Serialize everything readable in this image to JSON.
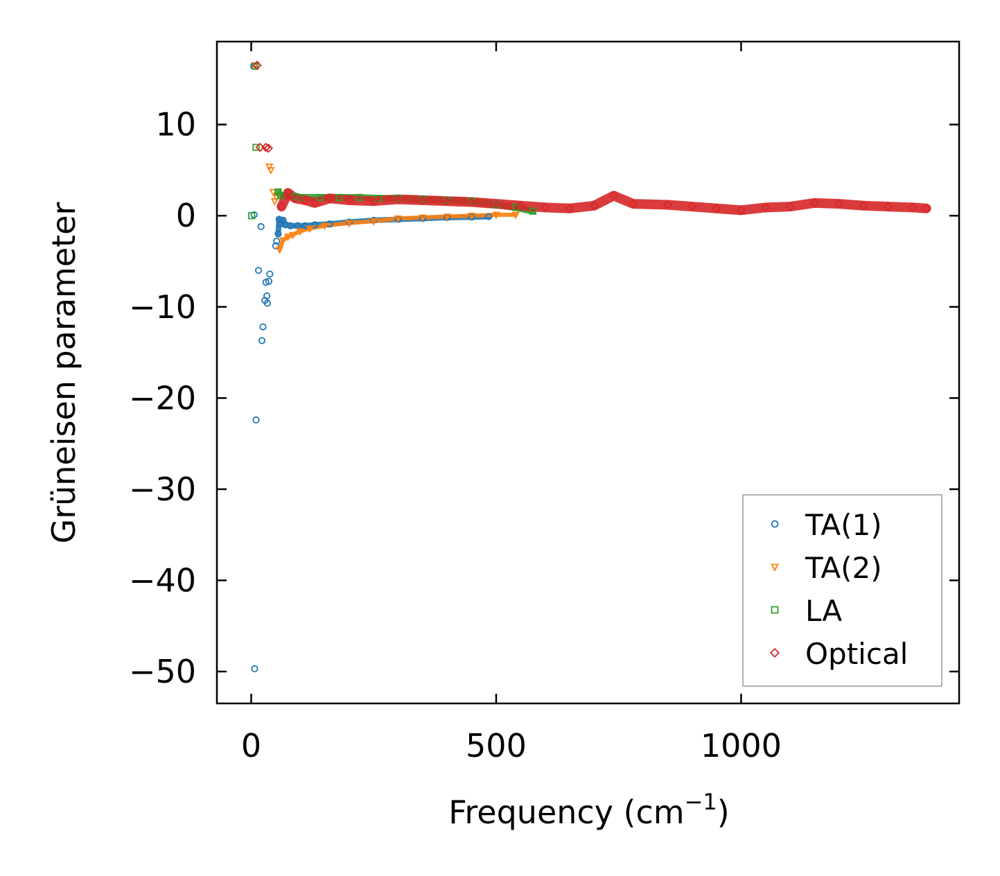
{
  "chart_data": {
    "type": "scatter",
    "title": "",
    "xlabel": "Frequency (cm",
    "xlabel_sup": "−1",
    "xlabel_close": ")",
    "ylabel": "Grüneisen parameter",
    "xlim": [
      -70,
      1445
    ],
    "ylim": [
      -53.5,
      19.1
    ],
    "xticks": [
      0,
      500,
      1000
    ],
    "xtick_labels": [
      "0",
      "500",
      "1000"
    ],
    "yticks": [
      10,
      0,
      -10,
      -20,
      -30,
      -40,
      -50
    ],
    "ytick_labels": [
      "10",
      "0",
      "−10",
      "−20",
      "−30",
      "−40",
      "−50"
    ],
    "legend_position": "lower-right",
    "series": [
      {
        "name": "TA(1)",
        "marker": "circle",
        "color": "#1f77b4",
        "points": [
          [
            5,
            16.4
          ],
          [
            6,
            0.1
          ],
          [
            7,
            -49.7
          ],
          [
            10,
            -22.4
          ],
          [
            15,
            -6
          ],
          [
            20,
            -1.2
          ],
          [
            22,
            -13.7
          ],
          [
            24,
            -12.2
          ],
          [
            28,
            -9.3
          ],
          [
            30,
            -7.3
          ],
          [
            32,
            -8.8
          ],
          [
            33,
            -9.6
          ],
          [
            36,
            -7.2
          ],
          [
            38,
            -6.4
          ],
          [
            50,
            -3.3
          ],
          [
            52,
            -2.8
          ],
          [
            55,
            -2
          ],
          [
            57,
            -0.4
          ],
          [
            60,
            -0.9
          ],
          [
            65,
            -0.5
          ],
          [
            70,
            -1
          ],
          [
            80,
            -1.1
          ],
          [
            95,
            -1.1
          ],
          [
            110,
            -1.1
          ],
          [
            130,
            -1
          ],
          [
            160,
            -0.9
          ],
          [
            200,
            -0.7
          ],
          [
            250,
            -0.5
          ],
          [
            300,
            -0.4
          ],
          [
            350,
            -0.3
          ],
          [
            400,
            -0.2
          ],
          [
            450,
            -0.15
          ],
          [
            485,
            -0.1
          ]
        ]
      },
      {
        "name": "TA(2)",
        "marker": "triangle-down",
        "color": "#ff7f0e",
        "points": [
          [
            7,
            16.5
          ],
          [
            37,
            5.4
          ],
          [
            40,
            5
          ],
          [
            45,
            2.6
          ],
          [
            48,
            1.6
          ],
          [
            52,
            2
          ],
          [
            58,
            -3.7
          ],
          [
            65,
            -2.7
          ],
          [
            75,
            -2.3
          ],
          [
            85,
            -2.1
          ],
          [
            100,
            -1.7
          ],
          [
            120,
            -1.4
          ],
          [
            150,
            -1.1
          ],
          [
            200,
            -0.8
          ],
          [
            250,
            -0.6
          ],
          [
            300,
            -0.3
          ],
          [
            350,
            -0.2
          ],
          [
            400,
            -0.1
          ],
          [
            450,
            0
          ],
          [
            500,
            0.1
          ],
          [
            540,
            0.1
          ]
        ]
      },
      {
        "name": "LA",
        "marker": "square",
        "color": "#2ca02c",
        "points": [
          [
            1,
            0
          ],
          [
            8,
            16.4
          ],
          [
            10,
            7.5
          ],
          [
            55,
            2.6
          ],
          [
            60,
            2.2
          ],
          [
            90,
            2.1
          ],
          [
            100,
            2
          ],
          [
            140,
            2
          ],
          [
            180,
            2
          ],
          [
            220,
            2
          ],
          [
            260,
            1.9
          ],
          [
            300,
            1.9
          ],
          [
            350,
            1.8
          ],
          [
            400,
            1.7
          ],
          [
            450,
            1.6
          ],
          [
            500,
            1.2
          ],
          [
            540,
            0.9
          ],
          [
            575,
            0.5
          ]
        ]
      },
      {
        "name": "Optical",
        "marker": "diamond",
        "color": "#d62728",
        "points": [
          [
            12,
            16.5
          ],
          [
            18,
            7.5
          ],
          [
            30,
            7.5
          ],
          [
            35,
            7.4
          ],
          [
            62,
            1
          ],
          [
            75,
            2.5
          ],
          [
            90,
            1.9
          ],
          [
            110,
            1.7
          ],
          [
            130,
            1.4
          ],
          [
            160,
            1.9
          ],
          [
            200,
            1.7
          ],
          [
            250,
            1.6
          ],
          [
            300,
            1.8
          ],
          [
            350,
            1.7
          ],
          [
            400,
            1.6
          ],
          [
            450,
            1.5
          ],
          [
            500,
            1.3
          ],
          [
            550,
            1.1
          ],
          [
            600,
            0.9
          ],
          [
            650,
            0.8
          ],
          [
            700,
            1.1
          ],
          [
            740,
            2.2
          ],
          [
            780,
            1.3
          ],
          [
            850,
            1.2
          ],
          [
            900,
            1
          ],
          [
            950,
            0.8
          ],
          [
            1000,
            0.6
          ],
          [
            1050,
            0.9
          ],
          [
            1100,
            1
          ],
          [
            1150,
            1.4
          ],
          [
            1200,
            1.3
          ],
          [
            1250,
            1.1
          ],
          [
            1300,
            1
          ],
          [
            1350,
            0.9
          ],
          [
            1378,
            0.8
          ]
        ]
      }
    ]
  }
}
